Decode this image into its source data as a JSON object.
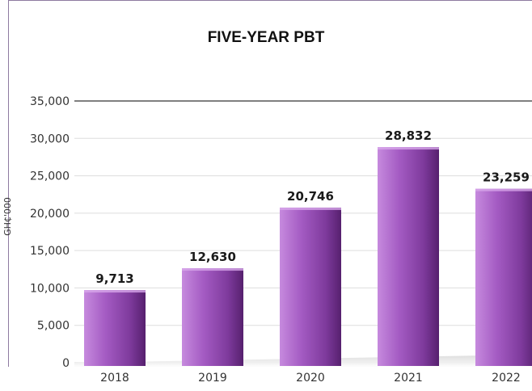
{
  "chart_data": {
    "type": "bar",
    "title": "FIVE-YEAR PBT",
    "ylabel": "GH₵'000",
    "xlabel": "",
    "categories": [
      "2018",
      "2019",
      "2020",
      "2021",
      "2022"
    ],
    "values": [
      9713,
      12630,
      20746,
      28832,
      23259
    ],
    "value_labels": [
      "9,713",
      "12,630",
      "20,746",
      "28,832",
      "23,259"
    ],
    "ylim": [
      0,
      35000
    ],
    "yticks": [
      0,
      5000,
      10000,
      15000,
      20000,
      25000,
      30000,
      35000
    ],
    "ytick_labels": [
      "0",
      "5,000",
      "10,000",
      "15,000",
      "20,000",
      "25,000",
      "30,000",
      "35,000"
    ],
    "grid": true,
    "legend": "none",
    "colors": {
      "bar_light": "#b572cf",
      "bar_mid": "#8c3fad",
      "bar_dark": "#5e2478",
      "frame": "#8e7aa0"
    }
  }
}
